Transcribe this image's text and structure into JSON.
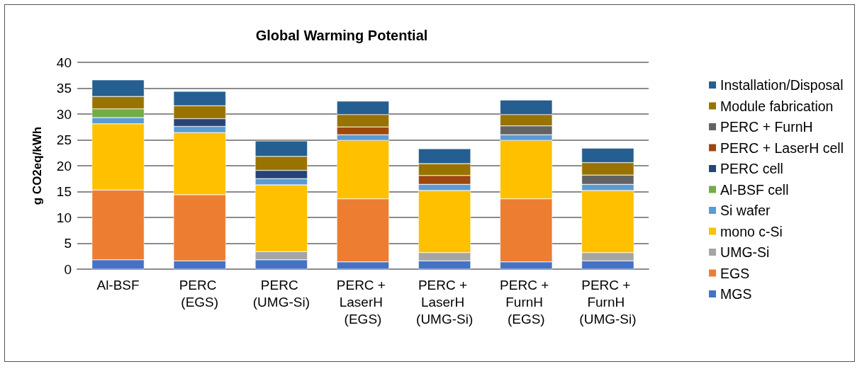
{
  "chart_data": {
    "type": "bar",
    "title": "Global Warming Potential",
    "ylabel": "g CO2eq/kWh",
    "categories": [
      "Al-BSF",
      "PERC (EGS)",
      "PERC (UMG-Si)",
      "PERC + LaserH (EGS)",
      "PERC + LaserH (UMG-Si)",
      "PERC + FurnH (EGS)",
      "PERC + FurnH (UMG-Si)"
    ],
    "stacked": true,
    "series": [
      {
        "name": "MGS",
        "color": "#4472c4",
        "values": [
          1.8,
          1.6,
          1.8,
          1.4,
          1.6,
          1.4,
          1.6
        ]
      },
      {
        "name": "EGS",
        "color": "#ed7d31",
        "values": [
          13.5,
          12.8,
          null,
          12.2,
          null,
          12.2,
          null
        ]
      },
      {
        "name": "UMG-Si",
        "color": "#a5a5a5",
        "values": [
          null,
          null,
          1.6,
          null,
          1.6,
          null,
          1.6
        ]
      },
      {
        "name": "mono c-Si",
        "color": "#ffc000",
        "values": [
          12.8,
          12.0,
          12.9,
          11.3,
          12.0,
          11.3,
          12.0
        ]
      },
      {
        "name": "Si wafer",
        "color": "#5b9bd5",
        "values": [
          1.2,
          1.2,
          1.2,
          1.1,
          1.2,
          1.1,
          1.2
        ]
      },
      {
        "name": "Al-BSF cell",
        "color": "#70ad47",
        "values": [
          1.7,
          null,
          null,
          null,
          null,
          null,
          null
        ]
      },
      {
        "name": "PERC cell",
        "color": "#264478",
        "values": [
          null,
          1.5,
          1.6,
          null,
          null,
          null,
          null
        ]
      },
      {
        "name": "PERC + LaserH cell",
        "color": "#9e480e",
        "values": [
          null,
          null,
          null,
          1.5,
          1.7,
          null,
          null
        ]
      },
      {
        "name": "PERC + FurnH",
        "color": "#636363",
        "values": [
          null,
          null,
          null,
          null,
          null,
          1.7,
          1.8
        ]
      },
      {
        "name": "Module fabrication",
        "color": "#997300",
        "values": [
          2.4,
          2.5,
          2.7,
          2.4,
          2.3,
          2.2,
          2.4
        ]
      },
      {
        "name": "Installation/Disposal",
        "color": "#255e91",
        "values": [
          3.2,
          2.8,
          3.0,
          2.6,
          2.9,
          2.8,
          2.8
        ]
      }
    ],
    "ylim": [
      0,
      40
    ],
    "yticks": [
      0,
      5,
      10,
      15,
      20,
      25,
      30,
      35,
      40
    ],
    "grid": "y",
    "legend": "right"
  }
}
